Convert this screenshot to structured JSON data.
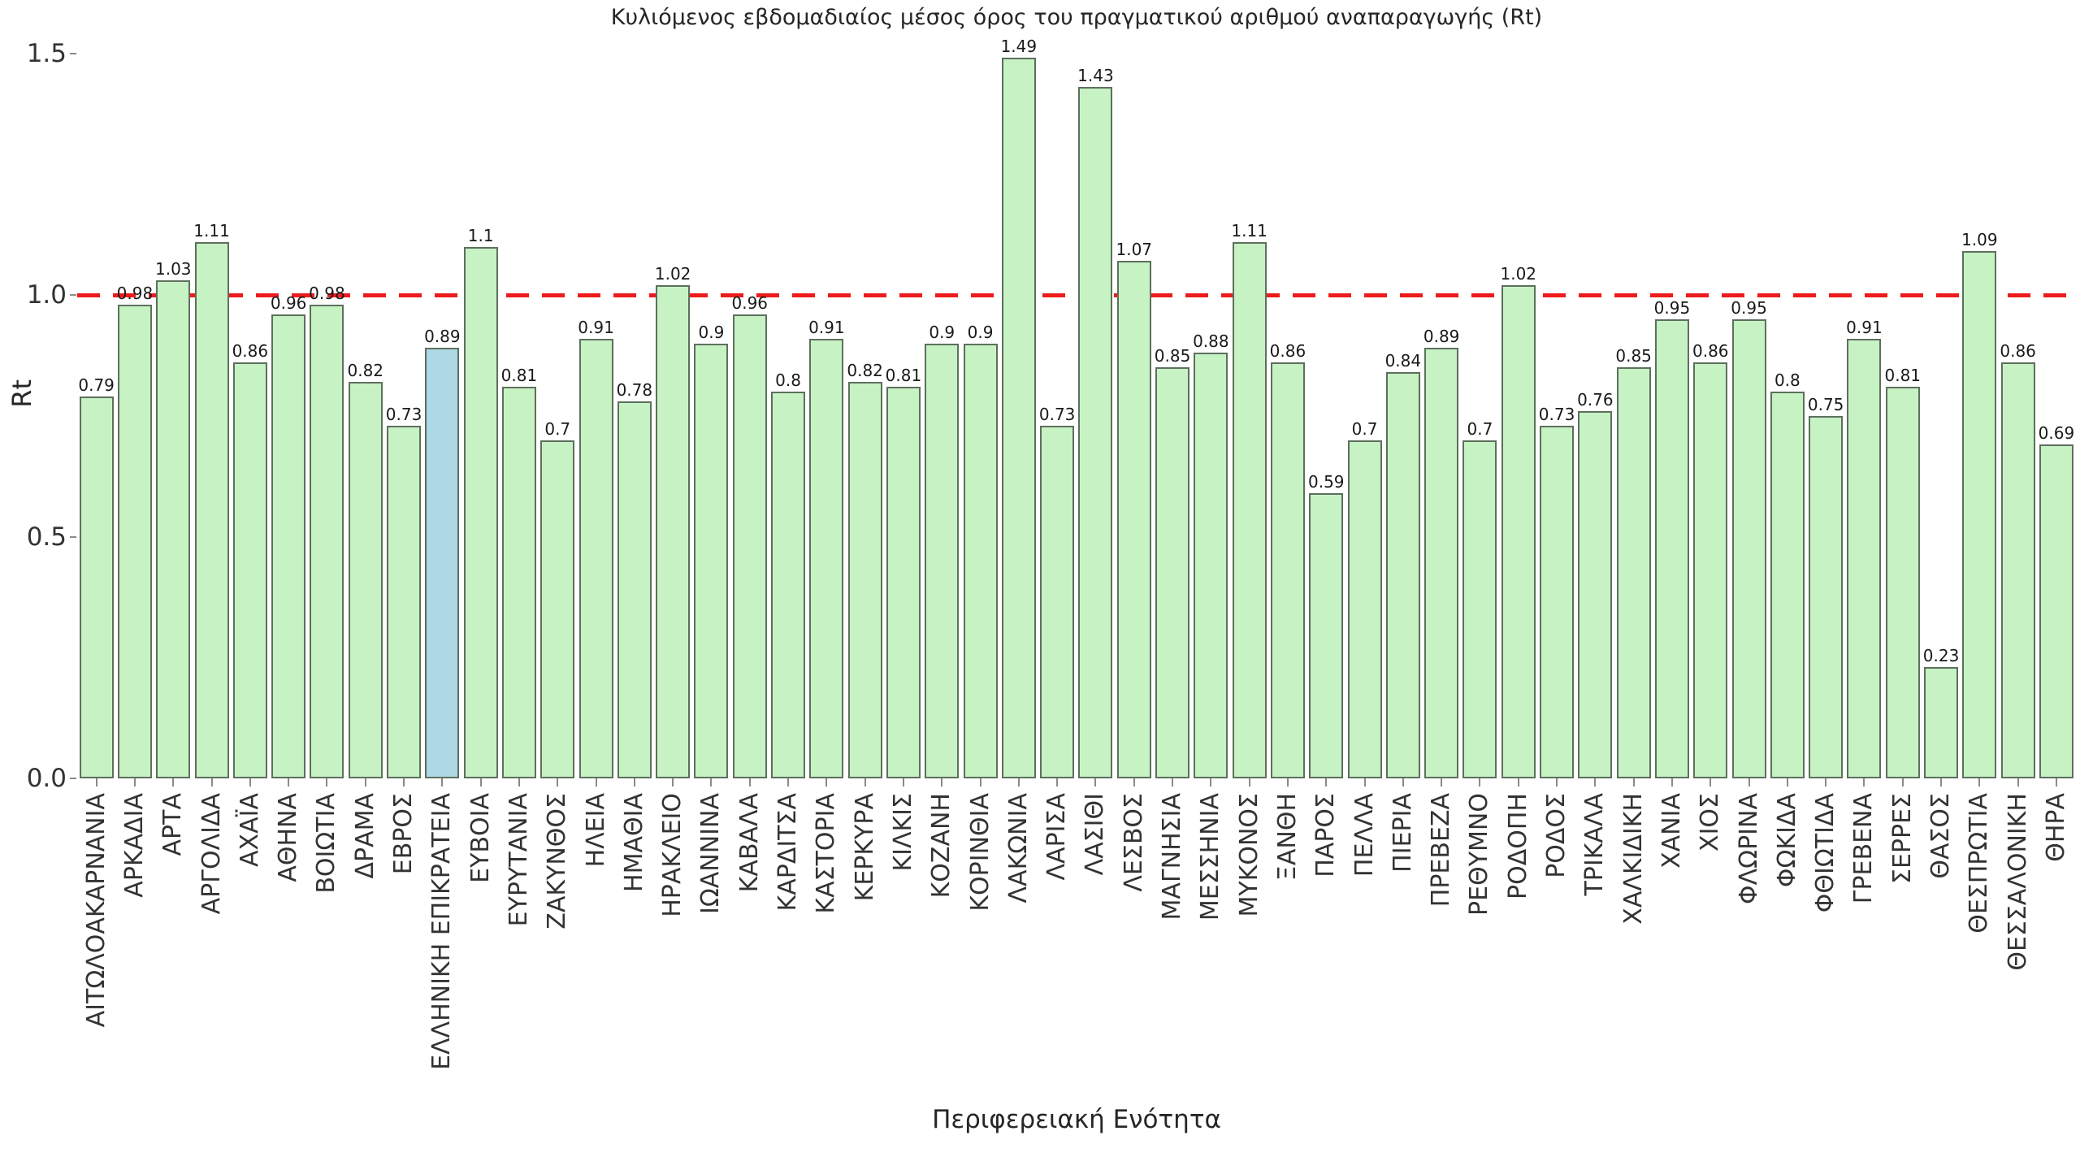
{
  "chart_data": {
    "type": "bar",
    "title": "Κυλιόμενος εβδομαδιαίος μέσος όρος του πραγματικού αριθμού αναπαραγωγής (Rt)",
    "xlabel": "Περιφερειακή Ενότητα",
    "ylabel": "Rt",
    "ylim": [
      0,
      1.55
    ],
    "yticks": [
      "0.0",
      "0.5",
      "1.0",
      "1.5"
    ],
    "ytick_values": [
      0,
      0.5,
      1.0,
      1.5
    ],
    "grid": false,
    "legend": "none",
    "reference_line": {
      "value": 1.0,
      "style": "dashed",
      "color": "#ed1c1c"
    },
    "highlight_category": "ΕΛΛΗΝΙΚΗ ΕΠΙΚΡΑΤΕΙΑ",
    "colors": {
      "bar_fill": "#c6f2c4",
      "bar_edge": "#5e6f5e",
      "highlight_fill": "#add8e6",
      "value_label": "#1a1a1a",
      "tick_label": "#333333"
    },
    "categories": [
      "ΑΙΤΩΛΟΑΚΑΡΝΑΝΙΑ",
      "ΑΡΚΑΔΙΑ",
      "ΑΡΤΑ",
      "ΑΡΓΟΛΙΔΑ",
      "ΑΧΑΪΑ",
      "ΑΘΗΝΑ",
      "ΒΟΙΩΤΙΑ",
      "ΔΡΑΜΑ",
      "ΕΒΡΟΣ",
      "ΕΛΛΗΝΙΚΗ ΕΠΙΚΡΑΤΕΙΑ",
      "ΕΥΒΟΙΑ",
      "ΕΥΡΥΤΑΝΙΑ",
      "ΖΑΚΥΝΘΟΣ",
      "ΗΛΕΙΑ",
      "ΗΜΑΘΙΑ",
      "ΗΡΑΚΛΕΙΟ",
      "ΙΩΑΝΝΙΝΑ",
      "ΚΑΒΑΛΑ",
      "ΚΑΡΔΙΤΣΑ",
      "ΚΑΣΤΟΡΙΑ",
      "ΚΕΡΚΥΡΑ",
      "ΚΙΛΚΙΣ",
      "ΚΟΖΑΝΗ",
      "ΚΟΡΙΝΘΙΑ",
      "ΛΑΚΩΝΙΑ",
      "ΛΑΡΙΣΑ",
      "ΛΑΣΙΘΙ",
      "ΛΕΣΒΟΣ",
      "ΜΑΓΝΗΣΙΑ",
      "ΜΕΣΣΗΝΙΑ",
      "ΜΥΚΟΝΟΣ",
      "ΞΑΝΘΗ",
      "ΠΑΡΟΣ",
      "ΠΕΛΛΑ",
      "ΠΙΕΡΙΑ",
      "ΠΡΕΒΕΖΑ",
      "ΡΕΘΥΜΝΟ",
      "ΡΟΔΟΠΗ",
      "ΡΟΔΟΣ",
      "ΤΡΙΚΑΛΑ",
      "ΧΑΛΚΙΔΙΚΗ",
      "ΧΑΝΙΑ",
      "ΧΙΟΣ",
      "ΦΛΩΡΙΝΑ",
      "ΦΩΚΙΔΑ",
      "ΦΘΙΩΤΙΔΑ",
      "ΓΡΕΒΕΝΑ",
      "ΣΕΡΡΕΣ",
      "ΘΑΣΟΣ",
      "ΘΕΣΠΡΩΤΙΑ",
      "ΘΕΣΣΑΛΟΝΙΚΗ",
      "ΘΗΡΑ"
    ],
    "values": [
      0.79,
      0.98,
      1.03,
      1.11,
      0.86,
      0.96,
      0.98,
      0.82,
      0.73,
      0.89,
      1.1,
      0.81,
      0.7,
      0.91,
      0.78,
      1.02,
      0.9,
      0.96,
      0.8,
      0.91,
      0.82,
      0.81,
      0.9,
      0.9,
      1.49,
      0.73,
      1.43,
      1.07,
      0.85,
      0.88,
      1.11,
      0.86,
      0.59,
      0.7,
      0.84,
      0.89,
      0.7,
      1.02,
      0.73,
      0.76,
      0.85,
      0.95,
      0.86,
      0.95,
      0.8,
      0.75,
      0.91,
      0.81,
      0.23,
      1.09,
      0.86,
      0.69
    ]
  }
}
